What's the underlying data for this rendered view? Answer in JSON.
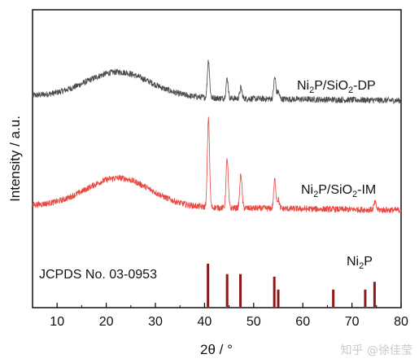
{
  "chart_data": {
    "type": "line",
    "xlabel": "2θ / °",
    "ylabel": "Intensity / a.u.",
    "xlim": [
      5,
      80
    ],
    "xticks": [
      10,
      20,
      30,
      40,
      50,
      60,
      70,
      80
    ],
    "grid": false,
    "series": [
      {
        "name": "Ni2P/SiO2-DP",
        "label_parts": [
          "Ni",
          "2",
          "P/SiO",
          "2",
          "-DP"
        ],
        "color": "#4a4a4a",
        "baseline": 0.2,
        "hump": {
          "center": 22.5,
          "width": 6.5,
          "height": 0.28
        },
        "peaks": [
          {
            "x": 40.8,
            "h": 0.42
          },
          {
            "x": 44.6,
            "h": 0.22
          },
          {
            "x": 47.4,
            "h": 0.12
          },
          {
            "x": 54.3,
            "h": 0.24
          },
          {
            "x": 55.0,
            "h": 0.08
          }
        ]
      },
      {
        "name": "Ni2P/SiO2-IM",
        "label_parts": [
          "Ni",
          "2",
          "P/SiO",
          "2",
          "-IM"
        ],
        "color": "#e8463f",
        "baseline": 0.14,
        "hump": {
          "center": 22.5,
          "width": 6.5,
          "height": 0.32
        },
        "peaks": [
          {
            "x": 40.8,
            "h": 1.0
          },
          {
            "x": 44.6,
            "h": 0.55
          },
          {
            "x": 47.4,
            "h": 0.38
          },
          {
            "x": 54.3,
            "h": 0.32
          },
          {
            "x": 55.0,
            "h": 0.1
          },
          {
            "x": 74.7,
            "h": 0.08
          }
        ]
      }
    ],
    "reference": {
      "name": "Ni2P",
      "label_parts": [
        "Ni",
        "2",
        "P"
      ],
      "card": "JCPDS No. 03-0953",
      "color": "#8b1a1a",
      "lines": [
        {
          "x": 40.7,
          "h": 100
        },
        {
          "x": 44.6,
          "h": 76
        },
        {
          "x": 47.3,
          "h": 76
        },
        {
          "x": 54.2,
          "h": 70
        },
        {
          "x": 55.0,
          "h": 40
        },
        {
          "x": 66.2,
          "h": 40
        },
        {
          "x": 72.7,
          "h": 40
        },
        {
          "x": 74.6,
          "h": 58
        }
      ]
    }
  },
  "watermark": "知乎 @徐佳莹"
}
